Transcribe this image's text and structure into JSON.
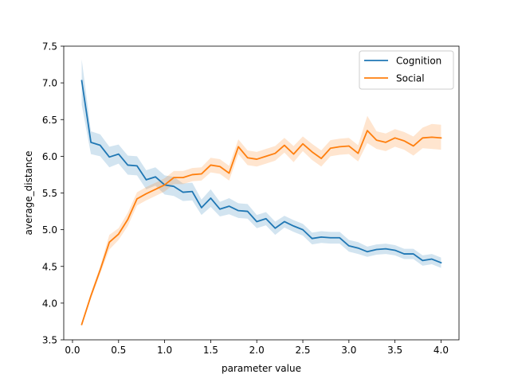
{
  "chart_data": {
    "type": "line",
    "title": "",
    "xlabel": "parameter value",
    "ylabel": "average_distance",
    "xlim": [
      -0.095,
      4.195
    ],
    "ylim": [
      3.5,
      7.5
    ],
    "xticks": [
      0.0,
      0.5,
      1.0,
      1.5,
      2.0,
      2.5,
      3.0,
      3.5,
      4.0
    ],
    "xtick_labels": [
      "0.0",
      "0.5",
      "1.0",
      "1.5",
      "2.0",
      "2.5",
      "3.0",
      "3.5",
      "4.0"
    ],
    "yticks": [
      3.5,
      4.0,
      4.5,
      5.0,
      5.5,
      6.0,
      6.5,
      7.0,
      7.5
    ],
    "ytick_labels": [
      "3.5",
      "4.0",
      "4.5",
      "5.0",
      "5.5",
      "6.0",
      "6.5",
      "7.0",
      "7.5"
    ],
    "grid": false,
    "legend_position": "top-right",
    "x": [
      0.1,
      0.2,
      0.3,
      0.4,
      0.5,
      0.6,
      0.7,
      0.8,
      0.9,
      1.0,
      1.1,
      1.2,
      1.3,
      1.4,
      1.5,
      1.6,
      1.7,
      1.8,
      1.9,
      2.0,
      2.1,
      2.2,
      2.3,
      2.4,
      2.5,
      2.6,
      2.7,
      2.8,
      2.9,
      3.0,
      3.1,
      3.2,
      3.3,
      3.4,
      3.5,
      3.6,
      3.7,
      3.8,
      3.9,
      4.0
    ],
    "series": [
      {
        "name": "Cognition",
        "color": "#1f77b4",
        "values": [
          7.03,
          6.19,
          6.15,
          5.99,
          6.03,
          5.88,
          5.87,
          5.68,
          5.72,
          5.61,
          5.59,
          5.51,
          5.52,
          5.3,
          5.43,
          5.28,
          5.32,
          5.26,
          5.25,
          5.11,
          5.15,
          5.02,
          5.11,
          5.05,
          5.0,
          4.88,
          4.9,
          4.89,
          4.89,
          4.78,
          4.75,
          4.7,
          4.73,
          4.74,
          4.72,
          4.67,
          4.67,
          4.58,
          4.6,
          4.55
        ],
        "ci_lower": [
          6.7,
          6.03,
          6.0,
          5.85,
          5.9,
          5.75,
          5.74,
          5.55,
          5.6,
          5.48,
          5.46,
          5.39,
          5.4,
          5.2,
          5.31,
          5.18,
          5.21,
          5.16,
          5.15,
          5.02,
          5.06,
          4.93,
          5.03,
          4.97,
          4.92,
          4.8,
          4.82,
          4.81,
          4.81,
          4.7,
          4.67,
          4.63,
          4.66,
          4.67,
          4.65,
          4.6,
          4.6,
          4.51,
          4.53,
          4.48
        ],
        "ci_upper": [
          7.32,
          6.34,
          6.3,
          6.13,
          6.16,
          6.01,
          6.0,
          5.81,
          5.85,
          5.74,
          5.72,
          5.63,
          5.64,
          5.41,
          5.55,
          5.38,
          5.43,
          5.36,
          5.35,
          5.2,
          5.24,
          5.11,
          5.19,
          5.13,
          5.08,
          4.96,
          4.98,
          4.97,
          4.97,
          4.86,
          4.83,
          4.77,
          4.8,
          4.81,
          4.79,
          4.74,
          4.74,
          4.65,
          4.67,
          4.62
        ]
      },
      {
        "name": "Social",
        "color": "#ff7f0e",
        "values": [
          3.71,
          4.1,
          4.45,
          4.83,
          4.94,
          5.14,
          5.42,
          5.49,
          5.55,
          5.61,
          5.71,
          5.71,
          5.75,
          5.76,
          5.88,
          5.86,
          5.77,
          6.13,
          5.98,
          5.96,
          6.0,
          6.04,
          6.15,
          6.03,
          6.17,
          6.06,
          5.97,
          6.11,
          6.13,
          6.14,
          6.04,
          6.35,
          6.22,
          6.19,
          6.25,
          6.21,
          6.14,
          6.25,
          6.26,
          6.25
        ],
        "ci_lower": [
          3.68,
          4.06,
          4.4,
          4.73,
          4.86,
          5.05,
          5.33,
          5.4,
          5.46,
          5.52,
          5.62,
          5.62,
          5.66,
          5.67,
          5.78,
          5.76,
          5.67,
          6.03,
          5.88,
          5.86,
          5.9,
          5.94,
          6.05,
          5.92,
          6.07,
          5.95,
          5.86,
          6.0,
          6.02,
          6.03,
          5.93,
          6.18,
          6.1,
          6.07,
          6.13,
          6.09,
          6.01,
          6.11,
          6.1,
          6.09
        ],
        "ci_upper": [
          3.74,
          4.14,
          4.5,
          4.93,
          5.02,
          5.23,
          5.51,
          5.58,
          5.64,
          5.7,
          5.8,
          5.8,
          5.84,
          5.85,
          5.98,
          5.96,
          5.87,
          6.23,
          6.08,
          6.06,
          6.1,
          6.14,
          6.25,
          6.14,
          6.27,
          6.17,
          6.08,
          6.22,
          6.24,
          6.25,
          6.15,
          6.55,
          6.34,
          6.31,
          6.37,
          6.33,
          6.27,
          6.39,
          6.44,
          6.43
        ]
      }
    ]
  }
}
